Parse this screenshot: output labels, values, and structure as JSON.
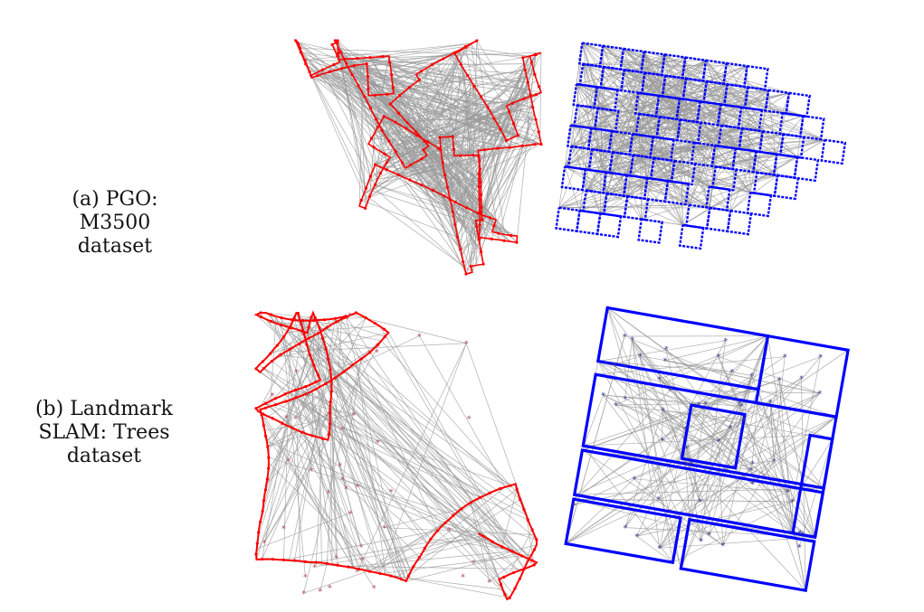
{
  "figure": {
    "row_a": {
      "caption_lines": [
        "(a) PGO:",
        "M3500",
        "dataset"
      ]
    },
    "row_b": {
      "caption_lines": [
        "(b) Landmark",
        "SLAM: Trees",
        "dataset"
      ]
    }
  },
  "colors": {
    "initial_trajectory": "#ff0000",
    "optimized_trajectory": "#0000ff",
    "loop_closures": "#9a9a9a",
    "landmarks_left": "#b05060",
    "landmarks_right": "#404090",
    "caption_text": "#111111"
  },
  "panels": [
    {
      "name": "pgo-initial",
      "style": "tangled red trajectory with loop closures"
    },
    {
      "name": "pgo-optimized",
      "style": "blue grid trajectory with loop closures"
    },
    {
      "name": "slam-initial",
      "style": "curved red trajectory with landmarks"
    },
    {
      "name": "slam-optimized",
      "style": "blue rectilinear trajectory with landmarks"
    }
  ]
}
